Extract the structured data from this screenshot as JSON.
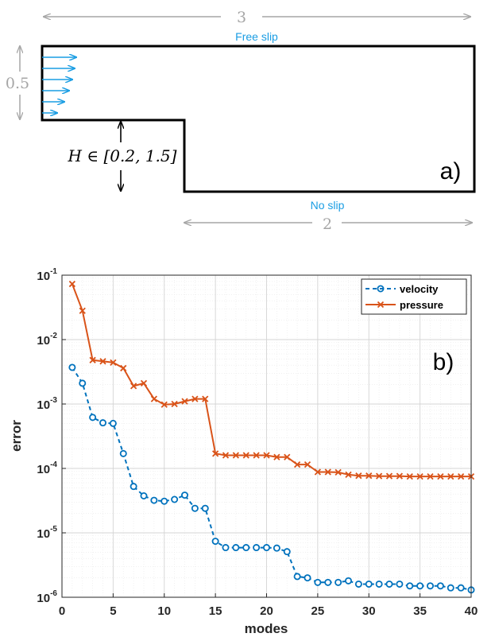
{
  "diagram": {
    "panel_label": "a)",
    "top_wall_label": "Free slip",
    "bottom_wall_label": "No slip",
    "total_length_label": "3",
    "outlet_length_label": "2",
    "inlet_height_label": "0.5",
    "step_height_label": "H ∈ [0.2, 1.5]",
    "colors": {
      "flow": "#1a9de3",
      "dimension": "#a6a6a6",
      "outline": "#000000"
    }
  },
  "chart_data": {
    "type": "line",
    "panel_label": "b)",
    "title": "",
    "xlabel": "modes",
    "ylabel": "error",
    "xlim": [
      0,
      40
    ],
    "ylim": [
      1e-06,
      0.1
    ],
    "yscale": "log",
    "grid": true,
    "legend_position": "top-right",
    "x_ticks": [
      0,
      5,
      10,
      15,
      20,
      25,
      30,
      35,
      40
    ],
    "y_ticks": [
      {
        "base": "10",
        "exp": "-6",
        "value": 1e-06
      },
      {
        "base": "10",
        "exp": "-5",
        "value": 1e-05
      },
      {
        "base": "10",
        "exp": "-4",
        "value": 0.0001
      },
      {
        "base": "10",
        "exp": "-3",
        "value": 0.001
      },
      {
        "base": "10",
        "exp": "-2",
        "value": 0.01
      },
      {
        "base": "10",
        "exp": "-1",
        "value": 0.1
      }
    ],
    "x": [
      1,
      2,
      3,
      4,
      5,
      6,
      7,
      8,
      9,
      10,
      11,
      12,
      13,
      14,
      15,
      16,
      17,
      18,
      19,
      20,
      21,
      22,
      23,
      24,
      25,
      26,
      27,
      28,
      29,
      30,
      31,
      32,
      33,
      34,
      35,
      36,
      37,
      38,
      39,
      40
    ],
    "series": [
      {
        "name": "velocity",
        "color": "#0072bd",
        "line_style": "dashed",
        "marker": "circle",
        "values": [
          0.0037,
          0.0021,
          0.00062,
          0.00051,
          0.0005,
          0.00017,
          5.25e-05,
          3.75e-05,
          3.2e-05,
          3.1e-05,
          3.3e-05,
          3.85e-05,
          2.4e-05,
          2.4e-05,
          7.4e-06,
          5.9e-06,
          5.9e-06,
          5.9e-06,
          5.9e-06,
          5.9e-06,
          5.8e-06,
          5.1e-06,
          2.1e-06,
          2e-06,
          1.7e-06,
          1.7e-06,
          1.7e-06,
          1.8e-06,
          1.6e-06,
          1.6e-06,
          1.6e-06,
          1.6e-06,
          1.6e-06,
          1.5e-06,
          1.5e-06,
          1.5e-06,
          1.5e-06,
          1.4e-06,
          1.4e-06,
          1.3e-06
        ]
      },
      {
        "name": "pressure",
        "color": "#d95319",
        "line_style": "solid",
        "marker": "x",
        "values": [
          0.073,
          0.028,
          0.0048,
          0.0046,
          0.0044,
          0.0036,
          0.0019,
          0.0021,
          0.0012,
          0.00098,
          0.001,
          0.0011,
          0.0012,
          0.0012,
          0.00017,
          0.00016,
          0.00016,
          0.00016,
          0.00016,
          0.00016,
          0.00015,
          0.00015,
          0.000115,
          0.000115,
          8.8e-05,
          8.8e-05,
          8.7e-05,
          8e-05,
          7.7e-05,
          7.7e-05,
          7.6e-05,
          7.6e-05,
          7.6e-05,
          7.5e-05,
          7.5e-05,
          7.5e-05,
          7.5e-05,
          7.5e-05,
          7.5e-05,
          7.5e-05
        ]
      }
    ]
  }
}
